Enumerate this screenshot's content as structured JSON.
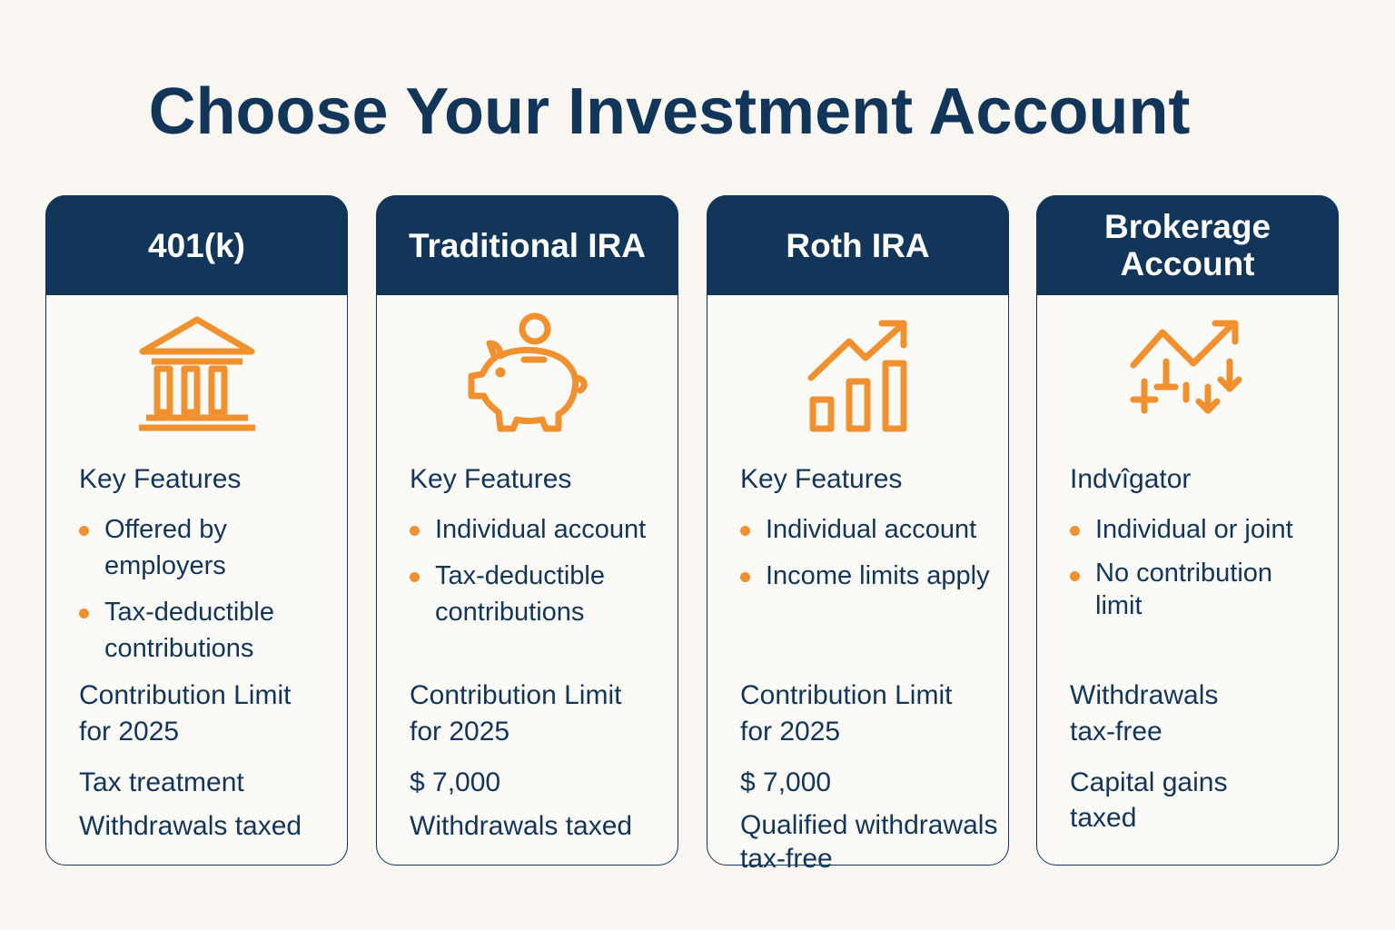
{
  "title": "Choose Your Investment Account",
  "colors": {
    "navy": "#12355a",
    "orange": "#f0902f",
    "background": "#faf7f2"
  },
  "cards": [
    {
      "name": "401(k)",
      "icon": "bank-building-icon",
      "section": "Key Features",
      "bullets": [
        "Offered by\nemployers",
        "Tax-deductible\ncontributions"
      ],
      "subheading": "Contribution Limit\nfor 2025",
      "line1": "Tax treatment",
      "line2": "Withdrawals taxed"
    },
    {
      "name": "Traditional IRA",
      "icon": "piggy-bank-icon",
      "section": "Key Features",
      "bullets": [
        "Individual account",
        "Tax-deductible\ncontributions"
      ],
      "subheading": "Contribution Limit\nfor 2025",
      "line1": "$ 7,000",
      "line2": "Withdrawals taxed"
    },
    {
      "name": "Roth IRA",
      "icon": "growth-chart-icon",
      "section": "Key Features",
      "bullets": [
        "Individual account",
        "Income limits apply"
      ],
      "subheading": "Contribution Limit\nfor 2025",
      "line1": "$ 7,000",
      "line2": "Qualified withdrawals\ntax-free"
    },
    {
      "name": "Brokerage\nAccount",
      "icon": "market-trend-icon",
      "section": "Indvîgator",
      "bullets": [
        "Individual or joint",
        "No contribution\nlimit"
      ],
      "subheading": "Withdrawals\ntax-free",
      "line1": "Capital gains\ntaxed"
    }
  ]
}
